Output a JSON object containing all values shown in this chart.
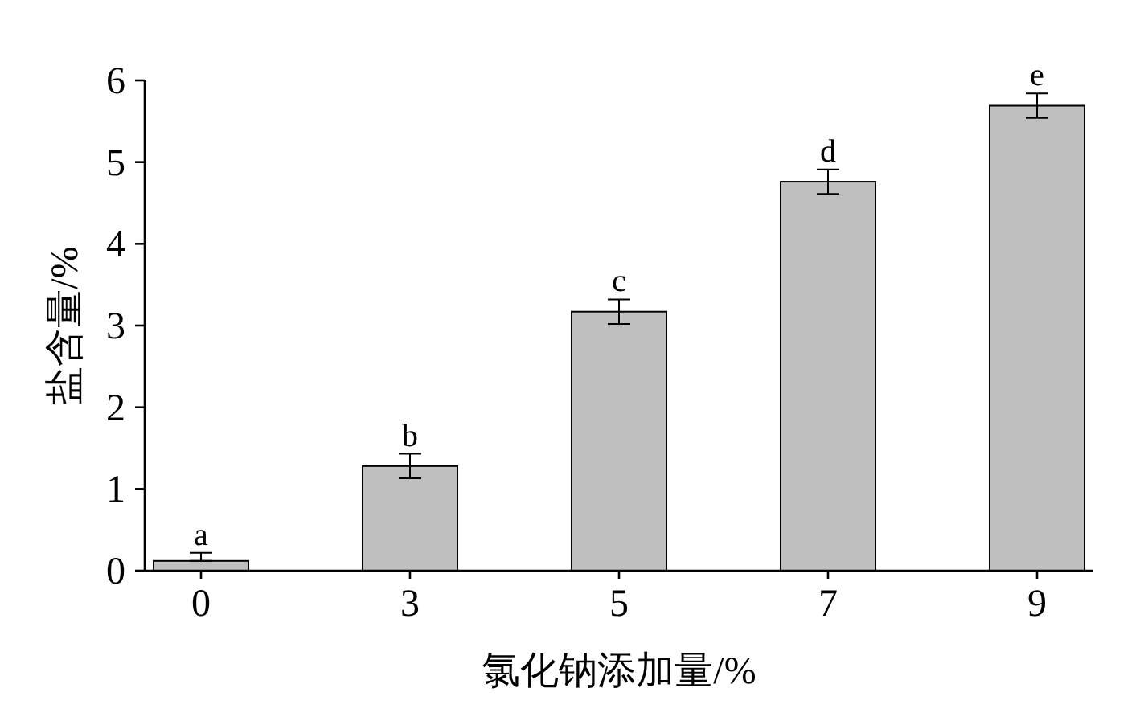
{
  "chart_data": {
    "type": "bar",
    "xlabel": "氯化钠添加量/%",
    "ylabel": "盐含量/%",
    "categories": [
      "0",
      "3",
      "5",
      "7",
      "9"
    ],
    "values": [
      0.12,
      1.28,
      3.17,
      4.76,
      5.69
    ],
    "errors": [
      [
        0.12,
        0.22
      ],
      0.15,
      0.15,
      0.15,
      0.15
    ],
    "color": "#bfbfbf",
    "ylim": [
      0,
      6
    ],
    "yticks": [
      0,
      1,
      2,
      3,
      4,
      5,
      6
    ],
    "annotations": [
      "a",
      "b",
      "c",
      "d",
      "e"
    ]
  }
}
